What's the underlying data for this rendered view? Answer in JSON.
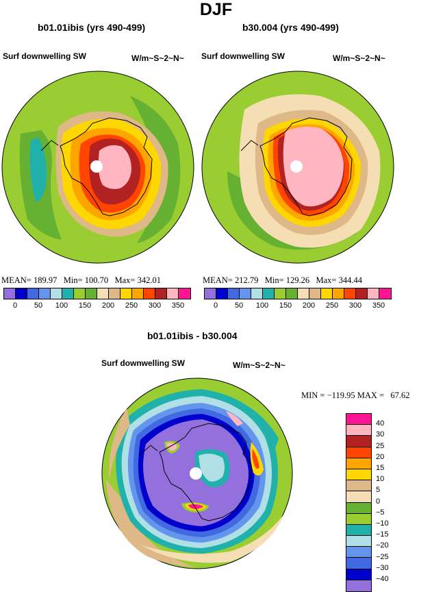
{
  "title": "DJF",
  "panel1": {
    "title": "b01.01ibis (yrs 490-499)",
    "variable": "Surf downwelling SW",
    "units": "W/m~S~2~N~",
    "stats": {
      "mean_label": "MEAN=",
      "mean": "189.97",
      "min_label": "Min=",
      "min": "100.70",
      "max_label": "Max=",
      "max": "342.01"
    }
  },
  "panel2": {
    "title": "b30.004 (yrs 490-499)",
    "variable": "Surf downwelling SW",
    "units": "W/m~S~2~N~",
    "stats": {
      "mean_label": "MEAN=",
      "mean": "212.79",
      "min_label": "Min=",
      "min": "129.26",
      "max_label": "Max=",
      "max": "344.44"
    }
  },
  "panel3": {
    "title": "b01.01ibis - b30.004",
    "variable": "Surf downwelling SW",
    "units": "W/m~S~2~N~",
    "stats": {
      "min_label": "MIN =",
      "min": "−119.95",
      "max_label": "MAX =",
      "max": "67.62"
    }
  },
  "colorbar_abs": {
    "colors": [
      "#9370db",
      "#0000cd",
      "#4169e1",
      "#6495ed",
      "#b0e0e6",
      "#20b2aa",
      "#9acd32",
      "#66b032",
      "#f5deb3",
      "#deb887",
      "#ffd700",
      "#ffa500",
      "#ff4500",
      "#b22222",
      "#ffb6c1",
      "#ff1493"
    ],
    "ticks": [
      "0",
      "50",
      "100",
      "150",
      "200",
      "250",
      "300",
      "350"
    ]
  },
  "colorbar_diff": {
    "colors": [
      "#ff1493",
      "#ffb6c1",
      "#b22222",
      "#ff4500",
      "#ffa500",
      "#ffd700",
      "#deb887",
      "#f5deb3",
      "#66b032",
      "#9acd32",
      "#20b2aa",
      "#b0e0e6",
      "#6495ed",
      "#4169e1",
      "#0000cd",
      "#9370db"
    ],
    "ticks": [
      "40",
      "30",
      "25",
      "20",
      "15",
      "10",
      "5",
      "0",
      "−5",
      "−10",
      "−15",
      "−20",
      "−25",
      "−30",
      "−40"
    ]
  },
  "map_colors": {
    "ocean_outer": "#9acd32",
    "ocean_mid": "#66b032",
    "high_sw": "#b22222",
    "diff_low": "#9370db"
  }
}
